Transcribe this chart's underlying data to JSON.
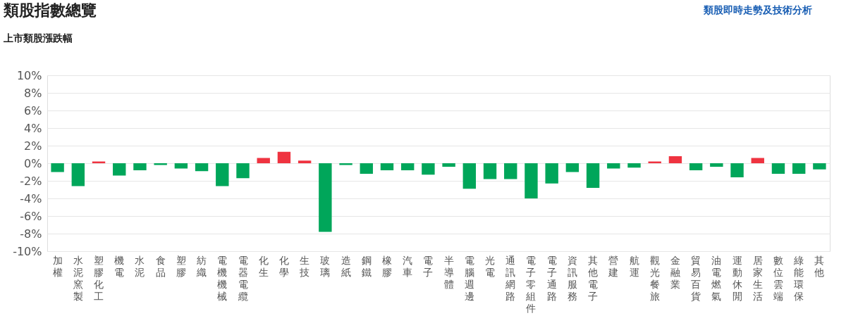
{
  "chart_data": {
    "type": "bar",
    "title": "類股指數總覽",
    "subtitle": "上市類股漲跌幅",
    "annotations": [
      "類股即時走勢及技術分析"
    ],
    "categories": [
      "加權",
      "水泥窯製",
      "塑膠化工",
      "機電",
      "水泥",
      "食品",
      "塑膠",
      "紡織",
      "電機機械",
      "電器電纜",
      "化生",
      "化學",
      "生技",
      "玻璃",
      "造紙",
      "鋼鐵",
      "橡膠",
      "汽車",
      "電子",
      "半導體",
      "電腦週邊",
      "光電",
      "通訊網路",
      "電子零組件",
      "電子通路",
      "資訊服務",
      "其他電子",
      "營建",
      "航運",
      "觀光餐旅",
      "金融業",
      "貿易百貨",
      "油電燃氣",
      "運動休閒",
      "居家生活",
      "數位雲端",
      "綠能環保",
      "其他"
    ],
    "values": [
      -1.0,
      -2.6,
      0.2,
      -1.4,
      -0.8,
      -0.2,
      -0.6,
      -0.9,
      -2.6,
      -1.7,
      0.6,
      1.3,
      0.3,
      -7.8,
      -0.2,
      -1.2,
      -0.8,
      -0.8,
      -1.3,
      -0.4,
      -2.9,
      -1.8,
      -1.8,
      -4.0,
      -2.3,
      -1.0,
      -2.8,
      -0.6,
      -0.5,
      0.2,
      0.8,
      -0.8,
      -0.4,
      -1.6,
      0.6,
      -1.2,
      -1.2,
      -0.7
    ],
    "colors": [
      "#00a65a",
      "#00a65a",
      "#ef3340",
      "#00a65a",
      "#00a65a",
      "#00a65a",
      "#00a65a",
      "#00a65a",
      "#00a65a",
      "#00a65a",
      "#ef3340",
      "#ef3340",
      "#ef3340",
      "#00a65a",
      "#00a65a",
      "#00a65a",
      "#00a65a",
      "#00a65a",
      "#00a65a",
      "#00a65a",
      "#00a65a",
      "#00a65a",
      "#00a65a",
      "#00a65a",
      "#00a65a",
      "#00a65a",
      "#00a65a",
      "#00a65a",
      "#00a65a",
      "#ef3340",
      "#ef3340",
      "#00a65a",
      "#00a65a",
      "#00a65a",
      "#ef3340",
      "#00a65a",
      "#00a65a",
      "#00a65a"
    ],
    "ylim": [
      -10,
      10
    ],
    "yticks": [
      {
        "value": -10,
        "label": "-10%"
      },
      {
        "value": -8,
        "label": "-8%"
      },
      {
        "value": -6,
        "label": "-6%"
      },
      {
        "value": -4,
        "label": "-4%"
      },
      {
        "value": -2,
        "label": "-2%"
      },
      {
        "value": 0,
        "label": "0%"
      },
      {
        "value": 2,
        "label": "2%"
      },
      {
        "value": 4,
        "label": "4%"
      },
      {
        "value": 6,
        "label": "6%"
      },
      {
        "value": 8,
        "label": "8%"
      },
      {
        "value": 10,
        "label": "10%"
      }
    ],
    "grid": "y"
  }
}
